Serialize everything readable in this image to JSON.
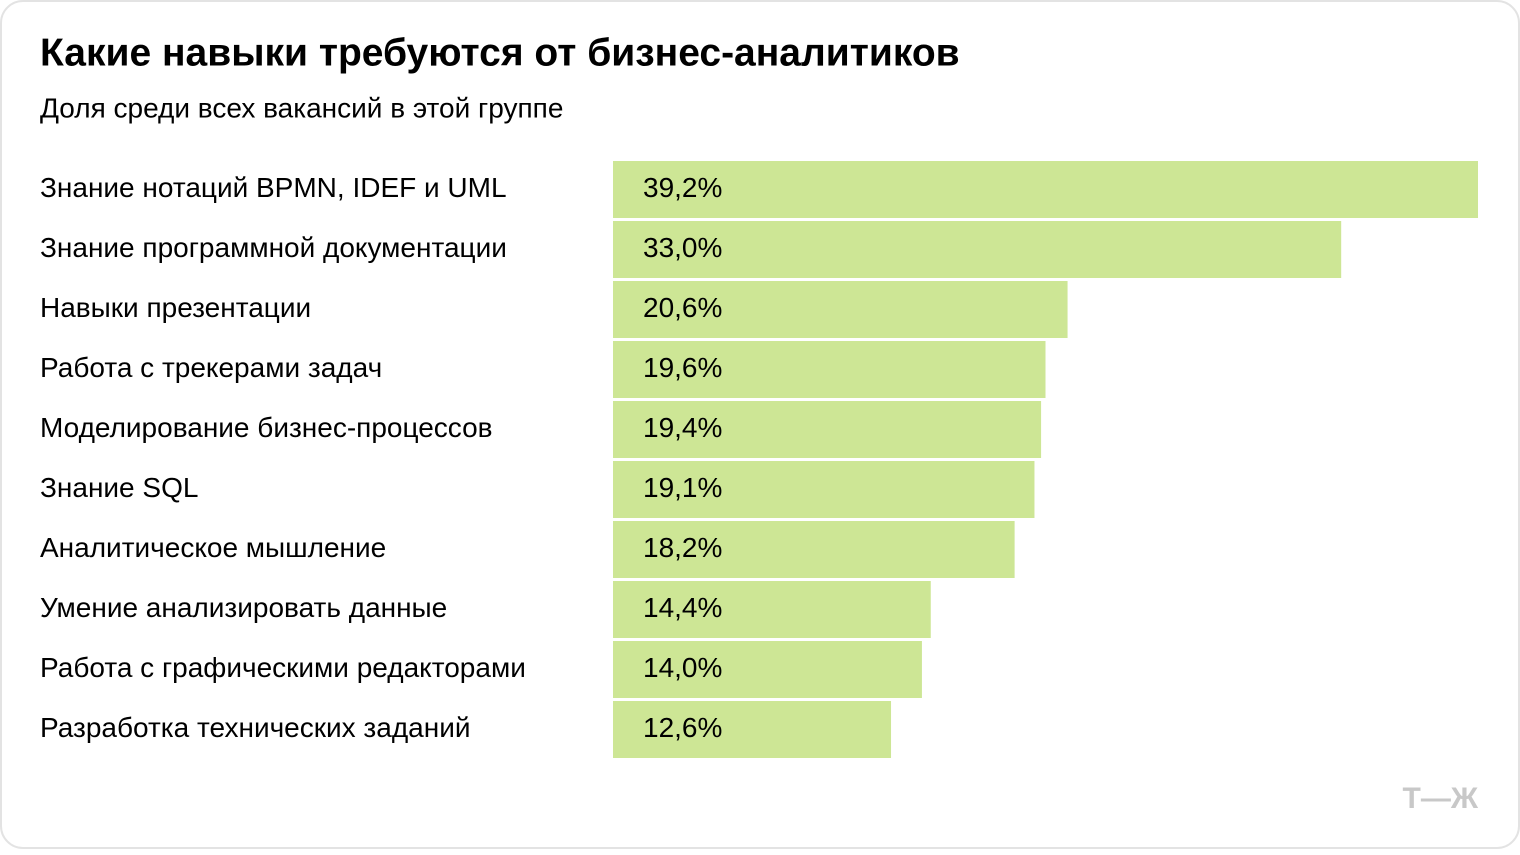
{
  "chart_data": {
    "type": "bar",
    "orientation": "horizontal",
    "title": "Какие навыки требуются от бизнес-аналитиков",
    "subtitle": "Доля среди всех вакансий в этой группе",
    "categories": [
      "Знание нотаций BPMN, IDEF и UML",
      "Знание программной документации",
      "Навыки презентации",
      "Работа с трекерами задач",
      "Моделирование бизнес-процессов",
      "Знание SQL",
      "Аналитическое мышление",
      "Умение анализировать данные",
      "Работа с графическими редакторами",
      "Разработка технических заданий"
    ],
    "values": [
      39.2,
      33.0,
      20.6,
      19.6,
      19.4,
      19.1,
      18.2,
      14.4,
      14.0,
      12.6
    ],
    "value_labels": [
      "39,2%",
      "33,0%",
      "20,6%",
      "19,6%",
      "19,4%",
      "19,1%",
      "18,2%",
      "14,4%",
      "14,0%",
      "12,6%"
    ],
    "color": "#cde695",
    "logo": "Т—Ж"
  }
}
